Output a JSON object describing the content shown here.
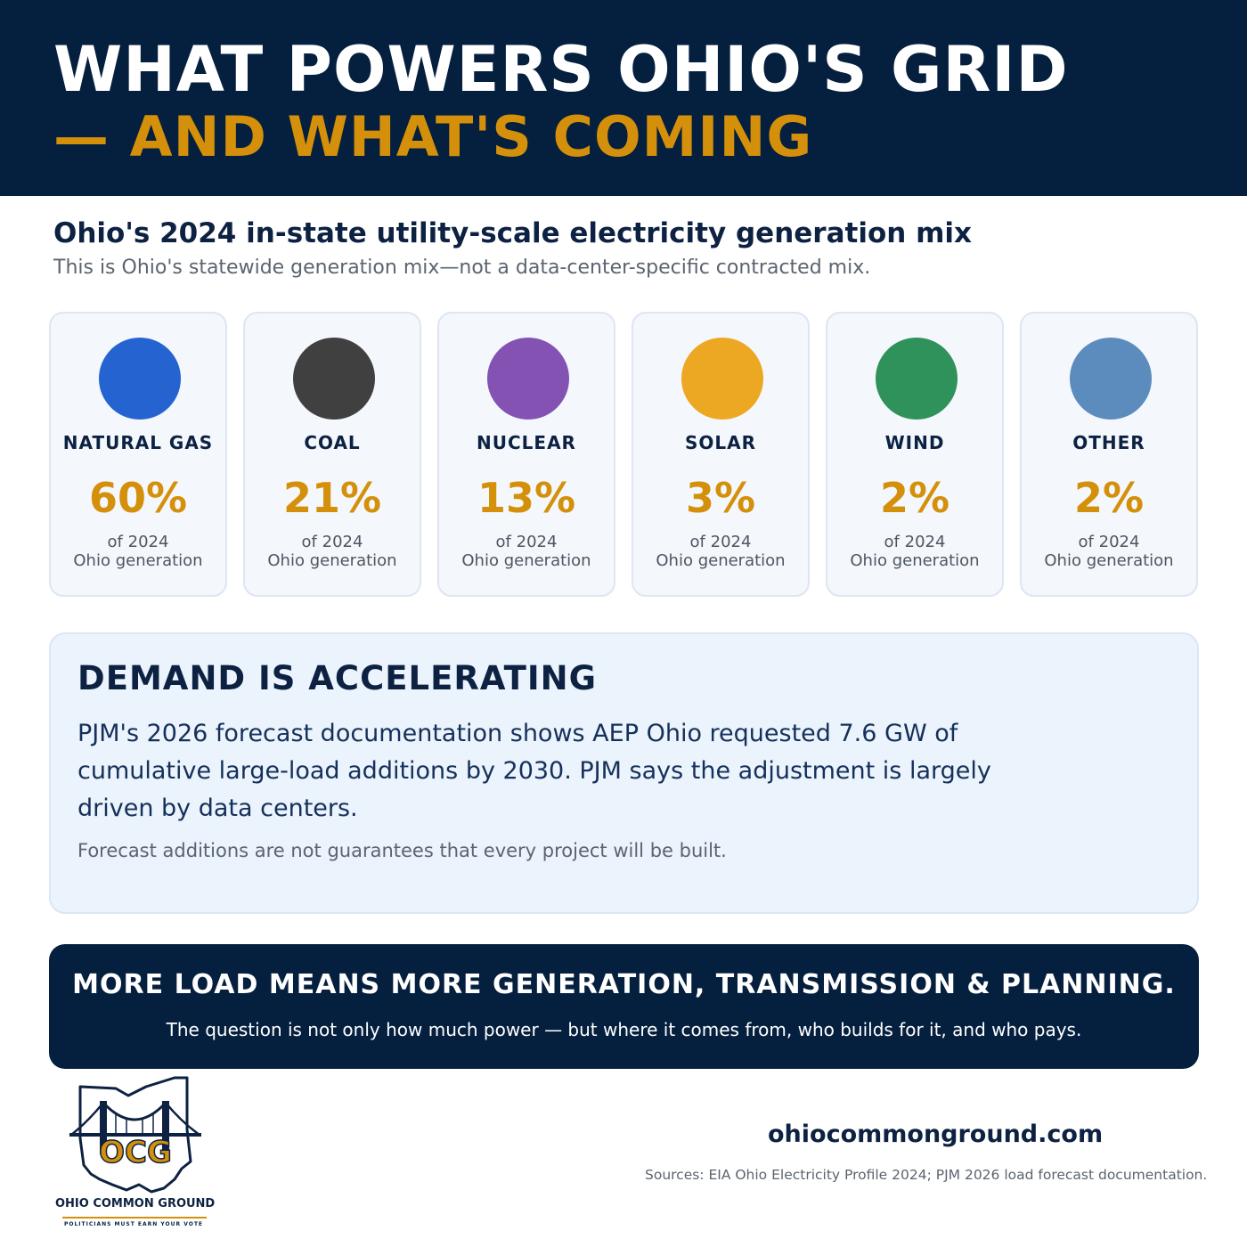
{
  "header": {
    "title_line1": "WHAT POWERS OHIO'S GRID",
    "title_line2": "— AND WHAT'S COMING"
  },
  "mix": {
    "heading": "Ohio's 2024 in-state utility-scale electricity generation mix",
    "note": "This is Ohio's statewide generation mix—not a data-center-specific contracted mix.",
    "cards": [
      {
        "label": "NATURAL GAS",
        "value": "60%",
        "note_line1": "of 2024",
        "note_line2": "Ohio generation",
        "color": "#2563d1"
      },
      {
        "label": "COAL",
        "value": "21%",
        "note_line1": "of 2024",
        "note_line2": "Ohio generation",
        "color": "#404040"
      },
      {
        "label": "NUCLEAR",
        "value": "13%",
        "note_line1": "of 2024",
        "note_line2": "Ohio generation",
        "color": "#8352b3"
      },
      {
        "label": "SOLAR",
        "value": "3%",
        "note_line1": "of 2024",
        "note_line2": "Ohio generation",
        "color": "#eca822"
      },
      {
        "label": "WIND",
        "value": "2%",
        "note_line1": "of 2024",
        "note_line2": "Ohio generation",
        "color": "#2f925a"
      },
      {
        "label": "OTHER",
        "value": "2%",
        "note_line1": "of 2024",
        "note_line2": "Ohio generation",
        "color": "#5b8cbd"
      }
    ]
  },
  "demand": {
    "title": "DEMAND IS ACCELERATING",
    "body": "PJM's 2026 forecast documentation shows AEP Ohio requested 7.6 GW of cumulative large-load additions by 2030. PJM says the adjustment is largely driven by data centers.",
    "footnote": "Forecast additions are not guarantees that every project will be built."
  },
  "banner": {
    "title": "MORE LOAD MEANS MORE GENERATION, TRANSMISSION & PLANNING.",
    "subtitle": "The question is not only how much power — but where it comes from, who builds for it, and who pays."
  },
  "footer": {
    "logo_letters": "OCG",
    "logo_name": "OHIO COMMON GROUND",
    "logo_tagline": "POLITICIANS MUST EARN YOUR VOTE",
    "website": "ohiocommonground.com",
    "sources": "Sources: EIA Ohio Electricity Profile 2024; PJM 2026 load forecast documentation."
  }
}
